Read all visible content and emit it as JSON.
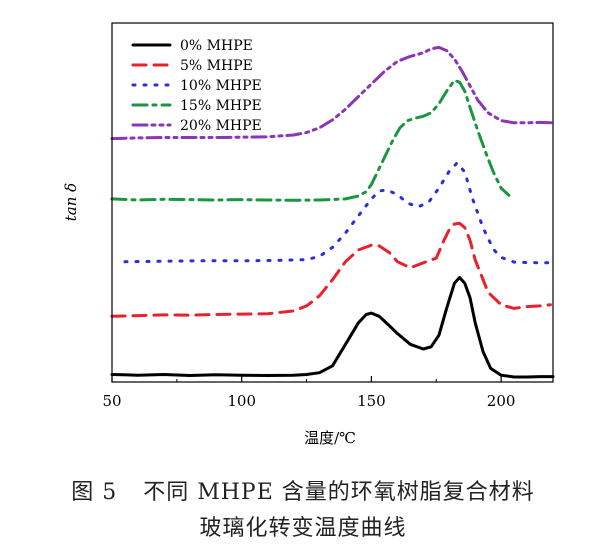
{
  "figure": {
    "label": "图 5",
    "caption_line1": "不同 MHPE 含量的环氧树脂复合材料",
    "caption_line2": "玻璃化转变温度曲线"
  },
  "chart_data": {
    "type": "line",
    "xlabel": "温度/℃",
    "ylabel": "tan δ",
    "xlim": [
      50,
      220
    ],
    "xticks": [
      50,
      100,
      150,
      200
    ],
    "ylim": [
      0,
      100
    ],
    "grid": false,
    "y_tick_labels": false,
    "legend_position": "top-left",
    "series": [
      {
        "name": "0% MHPE",
        "color": "#000000",
        "style": "solid",
        "x": [
          50,
          60,
          70,
          80,
          90,
          100,
          110,
          120,
          125,
          130,
          135,
          140,
          145,
          148,
          150,
          153,
          156,
          160,
          165,
          170,
          173,
          176,
          179,
          182,
          184,
          186,
          188,
          190,
          193,
          196,
          200,
          205,
          210,
          215,
          220
        ],
        "y": [
          2.1,
          1.9,
          2.1,
          1.8,
          2.0,
          1.9,
          1.8,
          1.9,
          2.1,
          2.6,
          4.5,
          10.5,
          16.5,
          18.8,
          19.2,
          18.3,
          16.3,
          13.5,
          10.5,
          9.2,
          9.8,
          13.0,
          20.5,
          27.5,
          29.1,
          27.5,
          23.5,
          16.5,
          8.5,
          3.8,
          1.9,
          1.4,
          1.4,
          1.5,
          1.5
        ]
      },
      {
        "name": "5% MHPE",
        "color": "#e8212b",
        "style": "dashed",
        "x": [
          50,
          60,
          70,
          80,
          90,
          100,
          110,
          120,
          125,
          130,
          135,
          140,
          145,
          150,
          153,
          157,
          160,
          165,
          170,
          175,
          178,
          180,
          182,
          184,
          186,
          188,
          190,
          195,
          200,
          205,
          210,
          215,
          219
        ],
        "y": [
          18.3,
          18.5,
          18.7,
          18.6,
          18.8,
          18.9,
          19.0,
          19.8,
          21.2,
          24.0,
          28.5,
          33.5,
          36.8,
          38.1,
          37.9,
          36.0,
          33.5,
          31.8,
          33.2,
          34.5,
          39.5,
          42.4,
          44.0,
          44.2,
          43.0,
          39.5,
          34.0,
          25.0,
          21.5,
          20.5,
          21.0,
          21.2,
          21.5
        ]
      },
      {
        "name": "10% MHPE",
        "color": "#2b2fd6",
        "style": "dotted",
        "x": [
          55,
          65,
          75,
          85,
          95,
          105,
          115,
          125,
          130,
          135,
          140,
          145,
          150,
          153,
          156,
          160,
          164,
          168,
          172,
          176,
          180,
          183,
          186,
          189,
          193,
          197,
          200,
          205,
          210,
          215,
          220
        ],
        "y": [
          33.5,
          33.6,
          33.7,
          33.8,
          33.8,
          33.8,
          33.9,
          34.1,
          35.0,
          37.5,
          41.5,
          46.3,
          51.0,
          53.2,
          53.5,
          52.2,
          49.8,
          48.8,
          50.0,
          54.0,
          58.7,
          61.0,
          58.5,
          51.0,
          43.0,
          37.0,
          34.7,
          33.4,
          33.3,
          33.2,
          33.2
        ]
      },
      {
        "name": "15% MHPE",
        "color": "#1a9641",
        "style": "dashdot",
        "x": [
          50,
          60,
          70,
          80,
          90,
          100,
          110,
          120,
          130,
          140,
          145,
          148,
          150,
          152,
          155,
          158,
          161,
          164,
          167,
          170,
          173,
          176,
          179,
          182,
          184,
          186,
          188,
          191,
          194,
          197,
          200,
          203
        ],
        "y": [
          51.0,
          50.7,
          50.9,
          50.8,
          50.7,
          50.8,
          50.7,
          50.6,
          50.7,
          51.0,
          51.8,
          53.0,
          55.0,
          58.0,
          62.5,
          67.0,
          70.8,
          72.8,
          73.5,
          74.0,
          75.0,
          77.5,
          81.0,
          84.0,
          83.5,
          81.0,
          76.5,
          70.0,
          64.0,
          58.5,
          54.0,
          52.0
        ]
      },
      {
        "name": "20% MHPE",
        "color": "#8b35b8",
        "style": "dashdotdot",
        "x": [
          50,
          60,
          70,
          80,
          90,
          100,
          110,
          120,
          125,
          130,
          135,
          140,
          145,
          150,
          155,
          160,
          165,
          170,
          173,
          176,
          179,
          182,
          185,
          188,
          191,
          195,
          200,
          205,
          210,
          215,
          220
        ],
        "y": [
          67.8,
          68.0,
          68.1,
          68.1,
          68.1,
          68.2,
          68.3,
          68.8,
          69.5,
          70.8,
          73.0,
          76.0,
          79.5,
          83.0,
          86.5,
          89.3,
          90.7,
          91.7,
          92.8,
          93.2,
          92.3,
          90.0,
          86.5,
          82.5,
          78.5,
          75.0,
          72.8,
          72.2,
          72.2,
          72.3,
          72.2
        ]
      }
    ]
  }
}
